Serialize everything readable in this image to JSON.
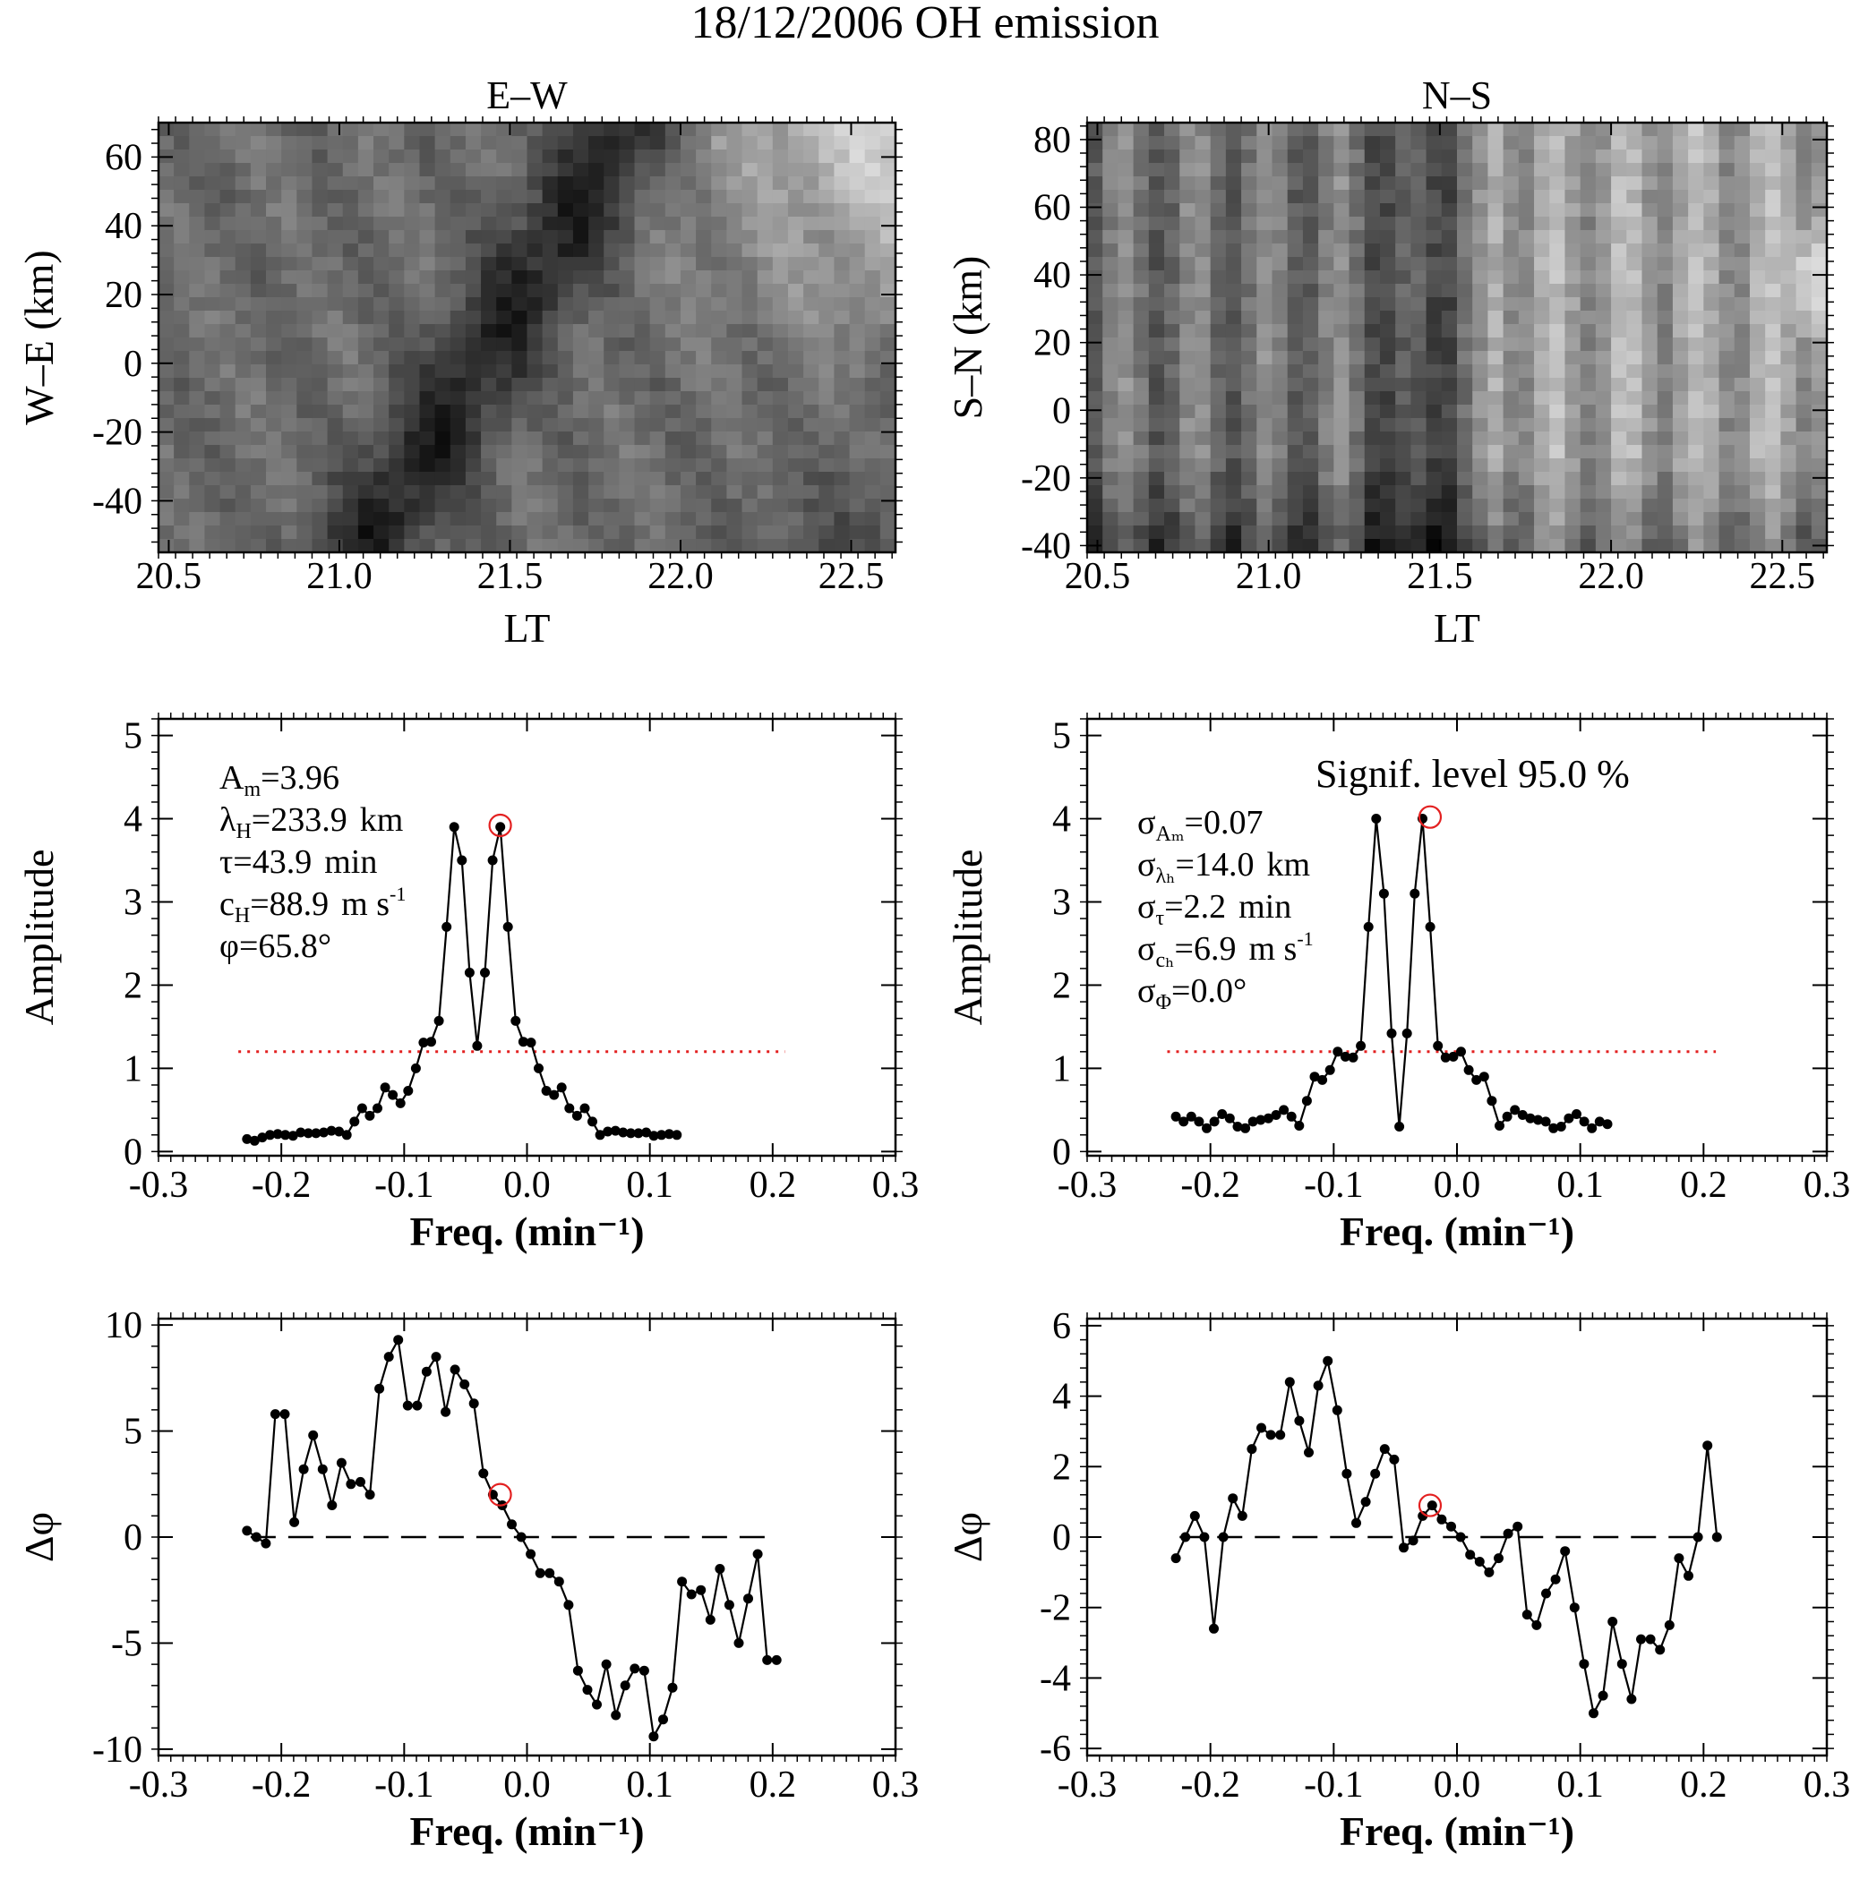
{
  "figure_title": "18/12/2006 OH emission",
  "chart_data": [
    {
      "id": "ew-keogram",
      "type": "heatmap",
      "title": "E–W",
      "xlabel": "LT",
      "ylabel": "W–E (km)",
      "xlim": [
        20.47,
        22.63
      ],
      "ylim": [
        -55,
        70
      ],
      "xticks": [
        20.5,
        21.0,
        21.5,
        22.0,
        22.5
      ],
      "xtick_labels": [
        "20.5",
        "21.0",
        "21.5",
        "22.0",
        "22.5"
      ],
      "yticks": [
        -40,
        -20,
        0,
        20,
        40,
        60
      ],
      "ytick_labels": [
        "-40",
        "-20",
        "0",
        "20",
        "40",
        "60"
      ],
      "colormap": "grayscale",
      "intensity_note": "dark diagonal band from ~21.1 LT (-50 km) to ~21.6 LT (+30 km); brightest near 22.5 LT, +60 km"
    },
    {
      "id": "ns-keogram",
      "type": "heatmap",
      "title": "N–S",
      "xlabel": "LT",
      "ylabel": "S–N (km)",
      "xlim": [
        20.47,
        22.63
      ],
      "ylim": [
        -42,
        85
      ],
      "xticks": [
        20.5,
        21.0,
        21.5,
        22.0,
        22.5
      ],
      "xtick_labels": [
        "20.5",
        "21.0",
        "21.5",
        "22.0",
        "22.5"
      ],
      "yticks": [
        -40,
        -20,
        0,
        20,
        40,
        60,
        80
      ],
      "ytick_labels": [
        "-40",
        "-20",
        "0",
        "20",
        "40",
        "60",
        "80"
      ],
      "colormap": "grayscale",
      "intensity_note": "dark vertical band near 21.35-21.5 LT; bright region after 21.6 LT, brightest near 22.6 LT, +40 km"
    },
    {
      "id": "ew-amplitude",
      "type": "line",
      "xlabel": "Freq. (min⁻¹)",
      "ylabel": "Amplitude",
      "xlim": [
        -0.3,
        0.3
      ],
      "ylim": [
        -0.05,
        5.2
      ],
      "xticks": [
        -0.3,
        -0.2,
        -0.1,
        0.0,
        0.1,
        0.2,
        0.3
      ],
      "xtick_labels": [
        "-0.3",
        "-0.2",
        "-0.1",
        "0.0",
        "0.1",
        "0.2",
        "0.3"
      ],
      "yticks": [
        0,
        1,
        2,
        3,
        4,
        5
      ],
      "ytick_labels": [
        "0",
        "1",
        "2",
        "3",
        "4",
        "5"
      ],
      "x_start": -0.228,
      "x_step": 0.00625,
      "values": [
        0.15,
        0.13,
        0.17,
        0.2,
        0.21,
        0.2,
        0.19,
        0.23,
        0.22,
        0.22,
        0.23,
        0.25,
        0.24,
        0.2,
        0.36,
        0.52,
        0.43,
        0.52,
        0.77,
        0.68,
        0.58,
        0.73,
        1.0,
        1.31,
        1.32,
        1.57,
        2.7,
        3.9,
        3.5,
        2.15,
        1.27,
        2.15,
        3.5,
        3.9,
        2.7,
        1.57,
        1.32,
        1.31,
        1.0,
        0.73,
        0.68,
        0.77,
        0.52,
        0.43,
        0.52,
        0.36,
        0.2,
        0.24,
        0.25,
        0.23,
        0.22,
        0.22,
        0.23,
        0.19,
        0.2,
        0.21,
        0.2
      ],
      "significance_level": 1.2,
      "peak": {
        "x": -0.0218,
        "y": 3.92
      },
      "annotations": [
        {
          "label": "A",
          "sub": "m",
          "value": "=3.96",
          "unit": "",
          "sup": ""
        },
        {
          "label": "λ",
          "sub": "H",
          "value": "=233.9",
          "unit": "km",
          "sup": ""
        },
        {
          "label": "τ",
          "sub": "",
          "value": "=43.9",
          "unit": "min",
          "sup": ""
        },
        {
          "label": "c",
          "sub": "H",
          "value": "=88.9",
          "unit": "m s",
          "sup": "-1"
        },
        {
          "label": "φ",
          "sub": "",
          "value": "=65.8°",
          "unit": "",
          "sup": ""
        }
      ]
    },
    {
      "id": "ns-amplitude",
      "type": "line",
      "xlabel": "Freq. (min⁻¹)",
      "ylabel": "Amplitude",
      "xlim": [
        -0.3,
        0.3
      ],
      "ylim": [
        -0.05,
        5.2
      ],
      "xticks": [
        -0.3,
        -0.2,
        -0.1,
        0.0,
        0.1,
        0.2,
        0.3
      ],
      "xtick_labels": [
        "-0.3",
        "-0.2",
        "-0.1",
        "0.0",
        "0.1",
        "0.2",
        "0.3"
      ],
      "yticks": [
        0,
        1,
        2,
        3,
        4,
        5
      ],
      "ytick_labels": [
        "0",
        "1",
        "2",
        "3",
        "4",
        "5"
      ],
      "x_start": -0.228,
      "x_step": 0.00625,
      "values": [
        0.42,
        0.36,
        0.42,
        0.36,
        0.28,
        0.36,
        0.45,
        0.4,
        0.3,
        0.28,
        0.36,
        0.38,
        0.4,
        0.44,
        0.5,
        0.42,
        0.31,
        0.61,
        0.9,
        0.86,
        0.98,
        1.2,
        1.14,
        1.13,
        1.27,
        2.7,
        4.0,
        3.1,
        1.42,
        0.3,
        1.42,
        3.1,
        4.0,
        2.7,
        1.27,
        1.13,
        1.14,
        1.2,
        0.98,
        0.86,
        0.9,
        0.61,
        0.31,
        0.42,
        0.5,
        0.44,
        0.4,
        0.38,
        0.36,
        0.28,
        0.3,
        0.4,
        0.45,
        0.36,
        0.28,
        0.36,
        0.33
      ],
      "significance_level": 1.2,
      "significance_label": "Signif. level 95.0 %",
      "peak": {
        "x": -0.0218,
        "y": 4.02
      },
      "annotations": [
        {
          "label": "σ",
          "sub": "Aₘ",
          "value": "=0.07",
          "unit": "",
          "sup": ""
        },
        {
          "label": "σ",
          "sub": "λₕ",
          "value": "=14.0",
          "unit": "km",
          "sup": ""
        },
        {
          "label": "σ",
          "sub": "τ",
          "value": "=2.2",
          "unit": "min",
          "sup": ""
        },
        {
          "label": "σ",
          "sub": "cₕ",
          "value": "=6.9",
          "unit": "m s",
          "sup": "-1"
        },
        {
          "label": "σ",
          "sub": "Φ",
          "value": "=0.0°",
          "unit": "",
          "sup": ""
        }
      ]
    },
    {
      "id": "ew-phase",
      "type": "line",
      "xlabel": "Freq. (min⁻¹)",
      "ylabel": "Δφ",
      "xlim": [
        -0.3,
        0.3
      ],
      "ylim": [
        -10.3,
        10.3
      ],
      "xticks": [
        -0.3,
        -0.2,
        -0.1,
        0.0,
        0.1,
        0.2,
        0.3
      ],
      "xtick_labels": [
        "-0.3",
        "-0.2",
        "-0.1",
        "0.0",
        "0.1",
        "0.2",
        "0.3"
      ],
      "yticks": [
        -10,
        -5,
        0,
        5,
        10
      ],
      "ytick_labels": [
        "-10",
        "-5",
        "0",
        "5",
        "10"
      ],
      "x_start": -0.228,
      "x_step": 0.0077,
      "values": [
        0.3,
        0.0,
        -0.3,
        5.8,
        5.8,
        0.7,
        3.2,
        4.8,
        3.2,
        1.5,
        3.5,
        2.5,
        2.6,
        2.0,
        7.0,
        8.5,
        9.3,
        6.2,
        6.2,
        7.8,
        8.5,
        5.9,
        7.9,
        7.2,
        6.3,
        3.0,
        2.0,
        1.5,
        0.6,
        0.0,
        -0.8,
        -1.7,
        -1.7,
        -2.1,
        -3.2,
        -6.3,
        -7.2,
        -7.9,
        -6.0,
        -8.4,
        -7.0,
        -6.2,
        -6.3,
        -9.4,
        -8.6,
        -7.1,
        -2.1,
        -2.7,
        -2.5,
        -3.9,
        -1.5,
        -3.2,
        -5.0,
        -2.9,
        -0.8,
        -5.8,
        -5.8
      ],
      "reference_line": 0,
      "peak": {
        "x": -0.0218,
        "y": 2.0
      }
    },
    {
      "id": "ns-phase",
      "type": "line",
      "xlabel": "Freq. (min⁻¹)",
      "ylabel": "Δφ",
      "xlim": [
        -0.3,
        0.3
      ],
      "ylim": [
        -6.2,
        6.2
      ],
      "xticks": [
        -0.3,
        -0.2,
        -0.1,
        0.0,
        0.1,
        0.2,
        0.3
      ],
      "xtick_labels": [
        "-0.3",
        "-0.2",
        "-0.1",
        "0.0",
        "0.1",
        "0.2",
        "0.3"
      ],
      "yticks": [
        -6,
        -4,
        -2,
        0,
        2,
        4,
        6
      ],
      "ytick_labels": [
        "-6",
        "-4",
        "-2",
        "0",
        "2",
        "4",
        "6"
      ],
      "x_start": -0.228,
      "x_step": 0.0077,
      "values": [
        -0.6,
        0.0,
        0.6,
        0.0,
        -2.6,
        0.0,
        1.1,
        0.6,
        2.5,
        3.1,
        2.9,
        2.9,
        4.4,
        3.3,
        2.4,
        4.3,
        5.0,
        3.6,
        1.8,
        0.4,
        1.0,
        1.8,
        2.5,
        2.2,
        -0.3,
        -0.1,
        0.6,
        0.9,
        0.5,
        0.3,
        0.0,
        -0.5,
        -0.7,
        -1.0,
        -0.6,
        0.1,
        0.3,
        -2.2,
        -2.5,
        -1.6,
        -1.2,
        -0.4,
        -2.0,
        -3.6,
        -5.0,
        -4.5,
        -2.4,
        -3.6,
        -4.6,
        -2.9,
        -2.9,
        -3.2,
        -2.5,
        -0.6,
        -1.1,
        0.0,
        2.6,
        0.0
      ],
      "reference_line": 0,
      "peak": {
        "x": -0.0218,
        "y": 0.9
      }
    }
  ]
}
